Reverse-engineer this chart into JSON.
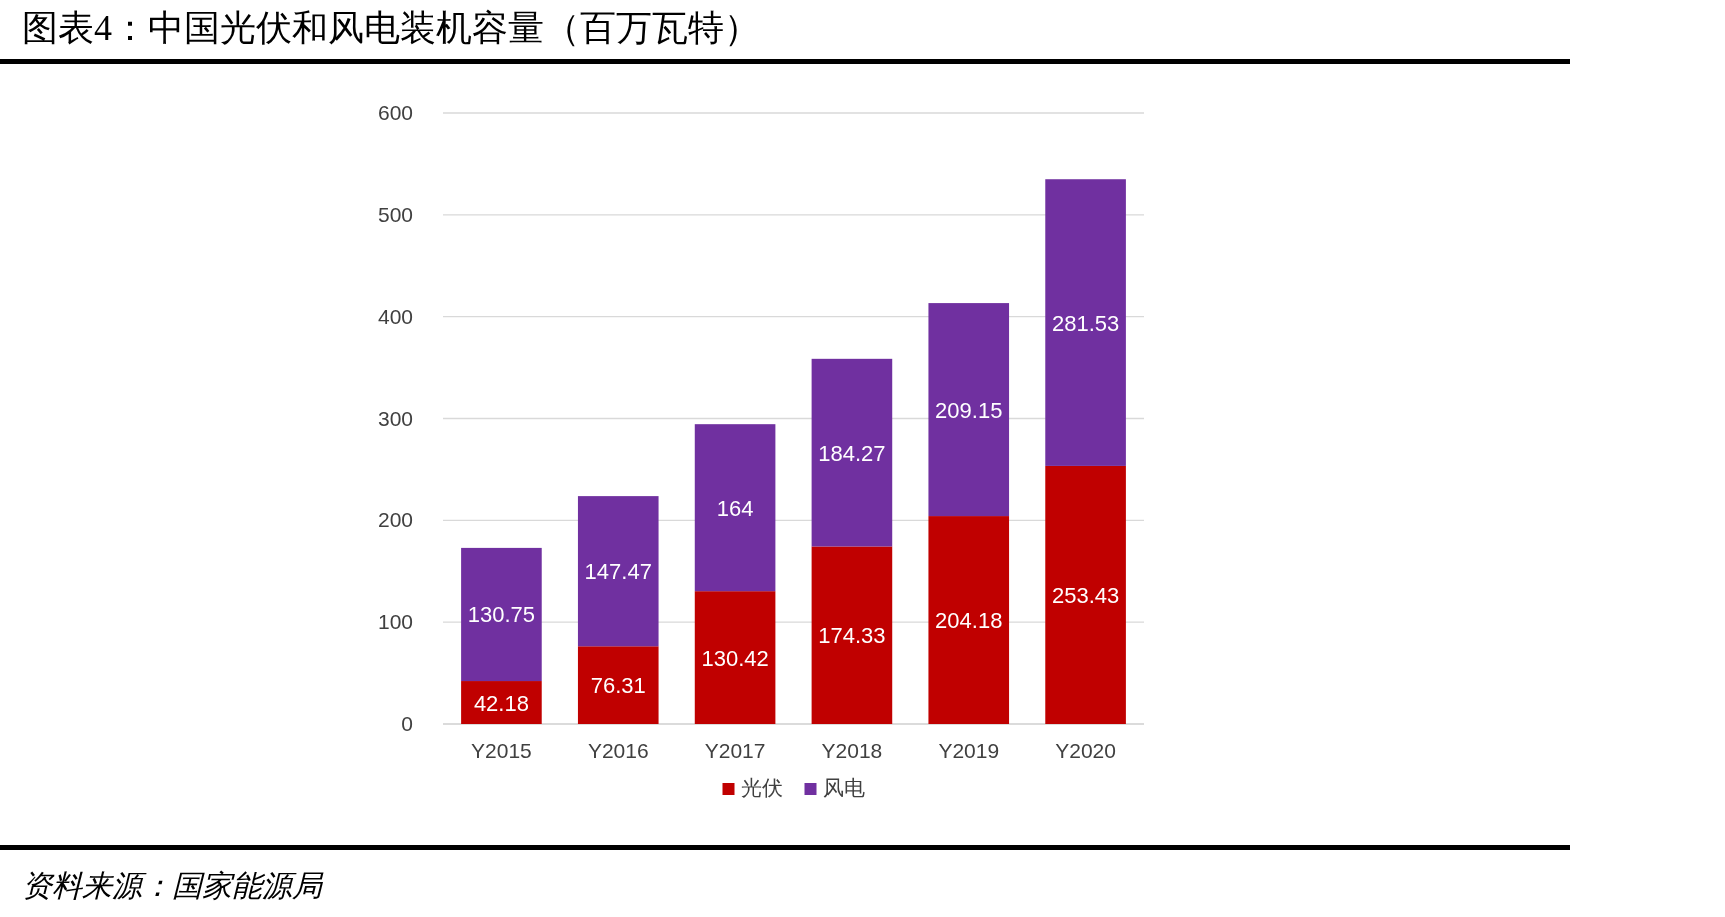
{
  "chart_data": {
    "type": "bar",
    "title": "图表4：中国光伏和风电装机容量（百万瓦特）",
    "categories": [
      "Y2015",
      "Y2016",
      "Y2017",
      "Y2018",
      "Y2019",
      "Y2020"
    ],
    "series": [
      {
        "name": "光伏",
        "color": "#c00000",
        "values": [
          42.18,
          76.31,
          130.42,
          174.33,
          204.18,
          253.43
        ]
      },
      {
        "name": "风电",
        "color": "#7030a0",
        "values": [
          130.75,
          147.47,
          164,
          184.27,
          209.15,
          281.53
        ]
      }
    ],
    "stacked": true,
    "ylim": [
      0,
      600
    ],
    "yticks": [
      0,
      100,
      200,
      300,
      400,
      500,
      600
    ],
    "grid": "y",
    "legend": "bottom",
    "data_labels": true,
    "annotations": [
      "资料来源：国家能源局"
    ]
  }
}
